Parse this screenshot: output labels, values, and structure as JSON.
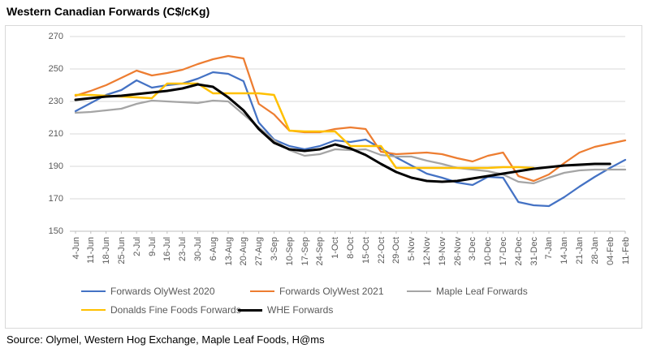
{
  "title": "Western Canadian Forwards (C$/cKg)",
  "source": "Source: Olymel, Western Hog Exchange, Maple Leaf Foods, H@ms",
  "colors": {
    "grid": "#D9D9D9",
    "axis_line": "#BFBFBF",
    "axis_text": "#595959",
    "border": "#D9D9D9"
  },
  "chart_data": {
    "type": "line",
    "title": "Western Canadian Forwards (C$/cKg)",
    "xlabel": "",
    "ylabel": "",
    "ylim": [
      150,
      270
    ],
    "y_ticks": [
      270,
      250,
      230,
      210,
      190,
      170,
      150
    ],
    "grid": true,
    "legend_position": "bottom",
    "x_labels": [
      "4-Jun",
      "11-Jun",
      "18-Jun",
      "25-Jun",
      "2-Jul",
      "9-Jul",
      "16-Jul",
      "23-Jul",
      "30-Jul",
      "6-Aug",
      "13-Aug",
      "20-Aug",
      "27-Aug",
      "3-Sep",
      "10-Sep",
      "17-Sep",
      "24-Sep",
      "1-Oct",
      "8-Oct",
      "15-Oct",
      "22-Oct",
      "29-Oct",
      "5-Nov",
      "12-Nov",
      "19-Nov",
      "26-Nov",
      "3-Dec",
      "10-Dec",
      "17-Dec",
      "24-Dec",
      "31-Dec",
      "7-Jan",
      "14-Jan",
      "21-Jan",
      "28-Jan",
      "04-Feb",
      "11-Feb"
    ],
    "series": [
      {
        "name": "Forwards OlyWest 2020",
        "color": "#4472C4",
        "line_width": 2.25,
        "values": [
          224,
          229,
          234,
          237,
          243,
          238.5,
          240,
          241,
          244,
          248,
          247,
          242.5,
          217,
          206.5,
          202.5,
          200.5,
          202.5,
          206,
          205,
          206.5,
          201,
          195.5,
          190.5,
          185.5,
          183,
          180,
          178.5,
          183.5,
          183,
          168,
          166,
          165.5,
          171,
          177.5,
          183.5,
          189,
          194
        ]
      },
      {
        "name": "Forwards OlyWest 2021",
        "color": "#ED7D31",
        "line_width": 2.25,
        "values": [
          233.5,
          236.5,
          240,
          244.5,
          249,
          246,
          247.5,
          249.5,
          253,
          256,
          258,
          256.5,
          228.5,
          222,
          212,
          211,
          211,
          213,
          214,
          213,
          199,
          197.5,
          198,
          198.5,
          197.5,
          195,
          193,
          196.5,
          198.5,
          184,
          181,
          185,
          192,
          198.5,
          202,
          204,
          206
        ]
      },
      {
        "name": "Maple Leaf Forwards",
        "color": "#A5A5A5",
        "line_width": 2.25,
        "values": [
          223,
          223.5,
          224.5,
          225.5,
          228.5,
          230.5,
          230,
          229.5,
          229,
          230.5,
          230,
          222,
          214,
          206,
          200,
          196.5,
          197.5,
          200.5,
          200,
          200.5,
          197,
          196,
          196,
          193.5,
          191.5,
          189,
          188,
          187,
          185,
          180.5,
          179.5,
          183,
          186,
          187.5,
          188,
          188,
          188
        ]
      },
      {
        "name": "Donalds Fine Foods Forwards",
        "color": "#FFC000",
        "line_width": 2.5,
        "values": [
          234,
          234,
          233.5,
          233,
          232.5,
          232,
          241,
          241,
          241,
          235,
          235,
          235,
          235,
          234,
          212,
          211.5,
          211.5,
          211.5,
          202.5,
          202.5,
          202.5,
          189,
          189,
          189,
          189,
          189,
          189,
          189,
          189.5,
          189.5,
          189,
          null,
          null,
          null,
          null,
          null,
          null
        ]
      },
      {
        "name": "WHE Forwards",
        "color": "#000000",
        "line_width": 3,
        "values": [
          231,
          232,
          233,
          233.5,
          234.5,
          235.5,
          236.5,
          238,
          240.5,
          239,
          232.5,
          224.5,
          213,
          204.5,
          200.5,
          199.5,
          200.5,
          203.5,
          201,
          197,
          191.5,
          186.5,
          183,
          181,
          180.5,
          181,
          182.5,
          184,
          185.5,
          187,
          188.5,
          189.5,
          190.5,
          191,
          191.5,
          191.5,
          null
        ]
      }
    ]
  }
}
